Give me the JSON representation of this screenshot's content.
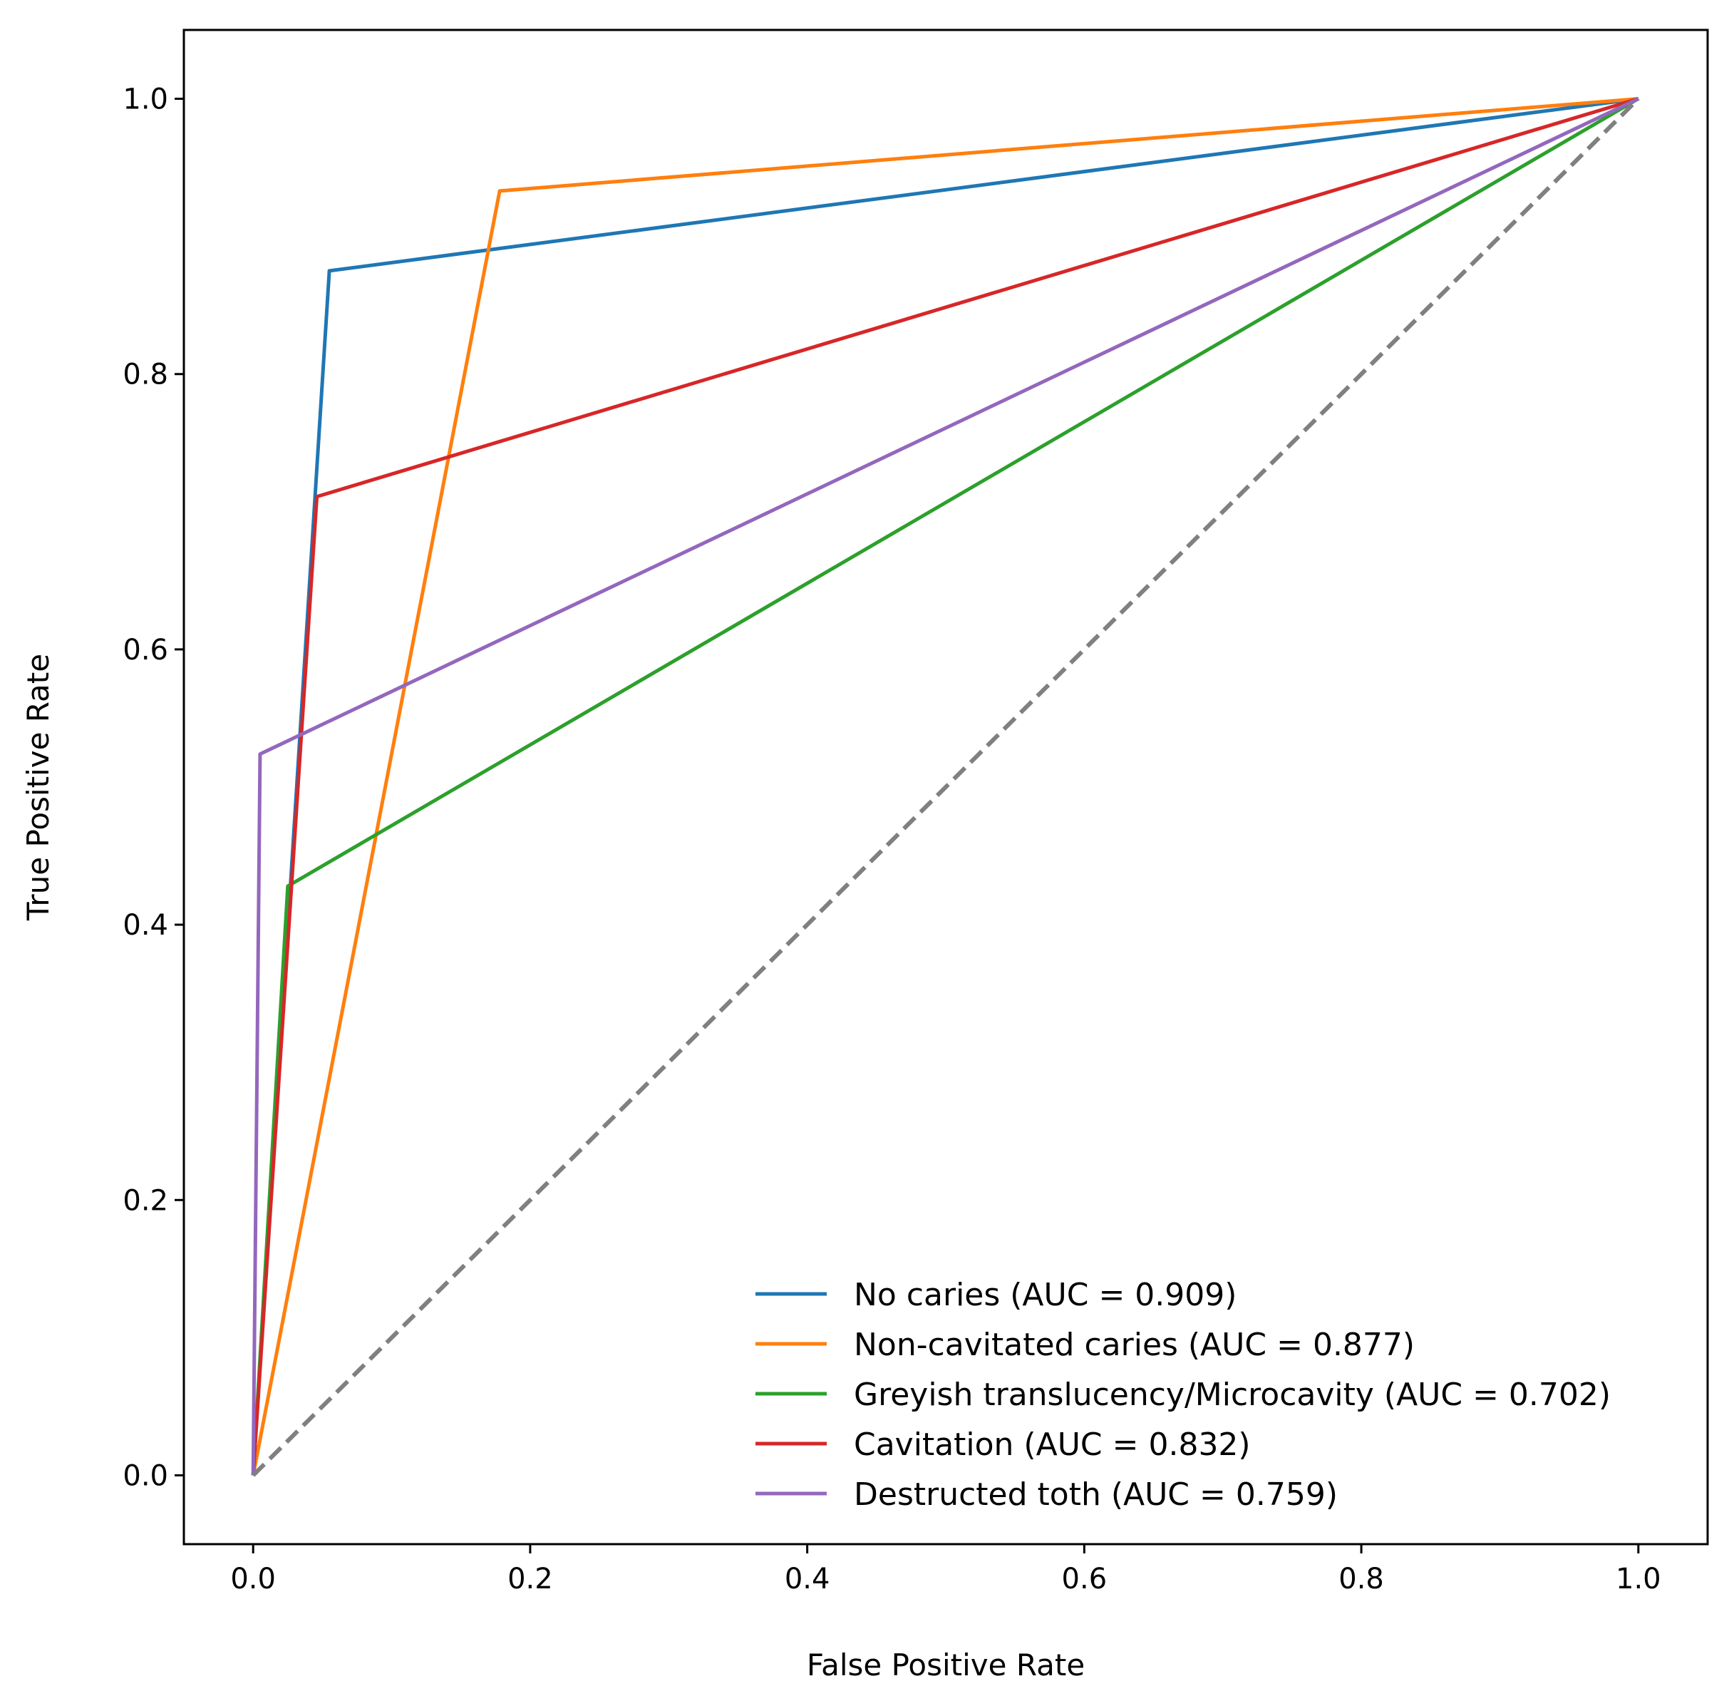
{
  "chart_data": {
    "type": "line",
    "title": "",
    "xlabel": "False Positive Rate",
    "ylabel": "True Positive Rate",
    "xlim": [
      -0.05,
      1.05
    ],
    "ylim": [
      -0.05,
      1.05
    ],
    "xticks": [
      "0.0",
      "0.2",
      "0.4",
      "0.6",
      "0.8",
      "1.0"
    ],
    "yticks": [
      "0.0",
      "0.2",
      "0.4",
      "0.6",
      "0.8",
      "1.0"
    ],
    "grid": false,
    "legend_position": "lower-right",
    "series": [
      {
        "name": "No caries (AUC = 0.909)",
        "color": "#1f77b4",
        "x": [
          0.0,
          0.055,
          1.0
        ],
        "y": [
          0.0,
          0.875,
          1.0
        ]
      },
      {
        "name": "Non-cavitated caries (AUC = 0.877)",
        "color": "#ff7f0e",
        "x": [
          0.0,
          0.178,
          1.0
        ],
        "y": [
          0.0,
          0.933,
          1.0
        ]
      },
      {
        "name": "Greyish translucency/Microcavity (AUC = 0.702)",
        "color": "#2ca02c",
        "x": [
          0.0,
          0.025,
          1.0
        ],
        "y": [
          0.0,
          0.428,
          1.0
        ]
      },
      {
        "name": "Cavitation (AUC = 0.832)",
        "color": "#d62728",
        "x": [
          0.0,
          0.046,
          1.0
        ],
        "y": [
          0.0,
          0.711,
          1.0
        ]
      },
      {
        "name": "Destructed toth (AUC = 0.759)",
        "color": "#9467bd",
        "x": [
          0.0,
          0.005,
          1.0
        ],
        "y": [
          0.0,
          0.524,
          1.0
        ]
      }
    ],
    "reference_line": {
      "x": [
        0.0,
        1.0
      ],
      "y": [
        0.0,
        1.0
      ],
      "color": "#808080",
      "style": "dashed"
    }
  }
}
